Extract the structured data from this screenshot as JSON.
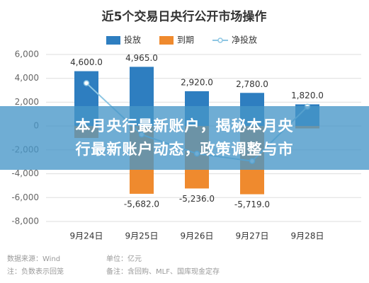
{
  "chart_data": {
    "type": "bar-line",
    "title": "近5个交易日央行公开市场操作",
    "categories": [
      "9月24日",
      "9月25日",
      "9月26日",
      "9月27日",
      "9月28日"
    ],
    "series": [
      {
        "name": "投放",
        "color": "#2e7ec0",
        "kind": "bar",
        "values": [
          4600,
          4965,
          2920,
          2780,
          1820
        ],
        "value_labels": [
          "4,600.0",
          "4,965.0",
          "2,920.0",
          "2,780.0",
          "1,820.0"
        ]
      },
      {
        "name": "到期",
        "color": "#ef8a2e",
        "kind": "bar",
        "values": [
          -1000,
          -5682,
          -5236,
          -5719,
          -200
        ],
        "value_labels": [
          null,
          "-5,682.0",
          "-5,236.0",
          "-5,719.0",
          null
        ]
      },
      {
        "name": "净投放",
        "color": "#8dc6e3",
        "kind": "line",
        "values": [
          3600,
          -717,
          -2316,
          -2939,
          1620
        ]
      }
    ],
    "ylim": [
      -8000,
      6000
    ],
    "yticks": [
      {
        "value": -8000,
        "label": "-8,000"
      },
      {
        "value": -6000,
        "label": "-6,000"
      },
      {
        "value": -4000,
        "label": "-4,000"
      },
      {
        "value": -2000,
        "label": "-2,000"
      },
      0,
      {
        "value": 2000,
        "label": "2,000"
      },
      {
        "value": 4000,
        "label": "4,000"
      },
      {
        "value": 6000,
        "label": "6,000"
      }
    ],
    "grid": true,
    "legend": "top"
  },
  "overlay_text": [
    "本月央行最新账户，揭秘本月央",
    "行最新账户动态，政策调整与市"
  ],
  "source": "数据来源：Wind",
  "unit": "单位：亿元",
  "notes": [
    "注：负数表示回笼",
    "备注：含回购、MLF、国库现金定存"
  ]
}
